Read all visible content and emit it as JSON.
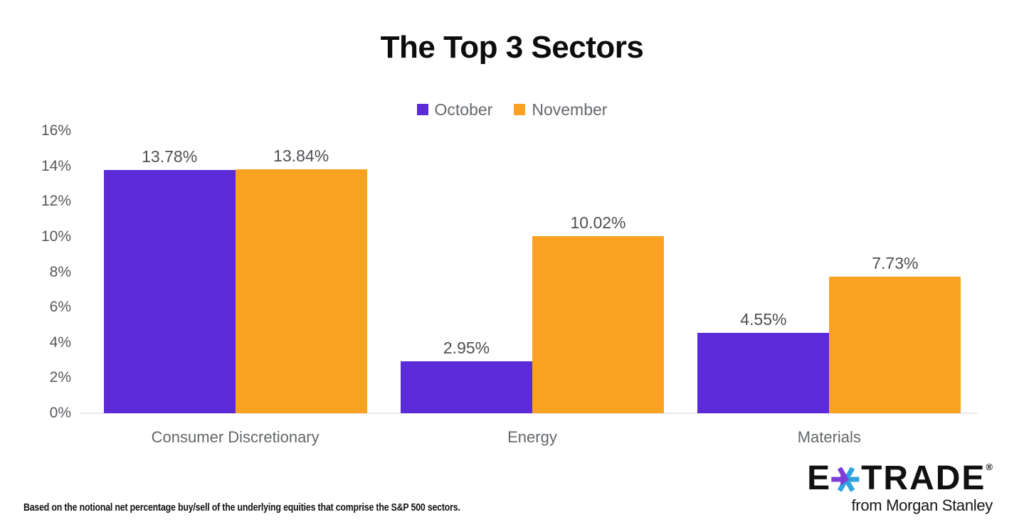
{
  "chart_data": {
    "type": "bar",
    "title": "The Top 3 Sectors",
    "categories": [
      "Consumer Discretionary",
      "Energy",
      "Materials"
    ],
    "series": [
      {
        "name": "October",
        "color": "#5A2BD6",
        "values": [
          13.78,
          2.95,
          4.55
        ]
      },
      {
        "name": "November",
        "color": "#FCA222",
        "values": [
          13.84,
          10.02,
          7.73
        ]
      }
    ],
    "value_labels": [
      [
        "13.78%",
        "13.84%"
      ],
      [
        "2.95%",
        "10.02%"
      ],
      [
        "4.55%",
        "7.73%"
      ]
    ],
    "xlabel": "",
    "ylabel": "",
    "ylim": [
      0,
      16
    ],
    "ytick_step": 2,
    "ytick_labels": [
      "0%",
      "2%",
      "4%",
      "6%",
      "8%",
      "10%",
      "12%",
      "14%",
      "16%"
    ],
    "grid": false,
    "legend_position": "top-center"
  },
  "footnote": "Based on the notional net percentage buy/sell of the underlying equities that comprise the S&P 500 sectors.",
  "logo": {
    "letter_e": "E",
    "wordmark": "TRADE",
    "registered": "®",
    "tagline": "from Morgan Stanley",
    "star_purple": "#7C3DD9",
    "star_blue": "#2EA3DC"
  }
}
